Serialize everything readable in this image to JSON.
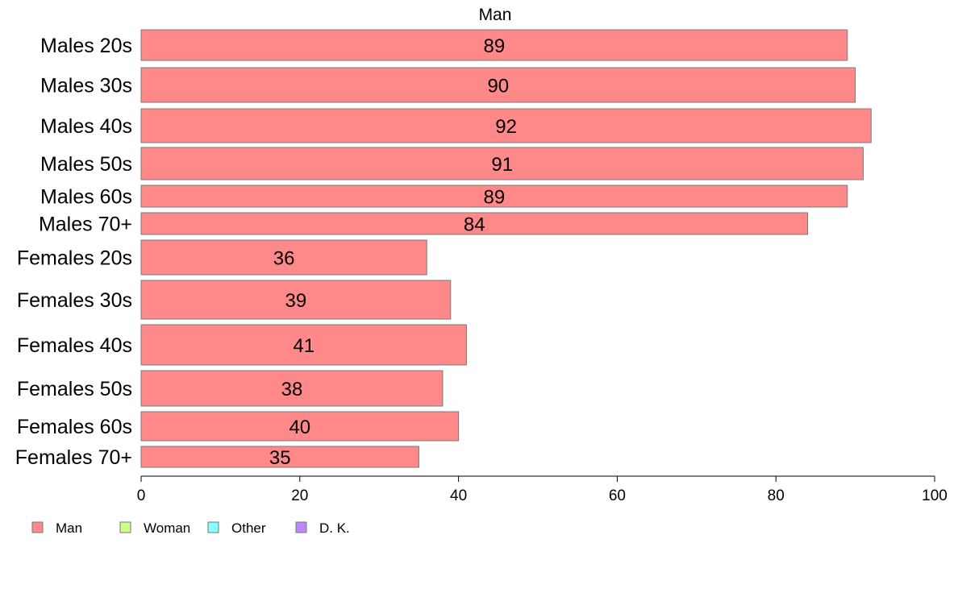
{
  "chart_data": {
    "type": "bar",
    "orientation": "horizontal",
    "title": "Man",
    "categories": [
      "Males 20s",
      "Males 30s",
      "Males 40s",
      "Males 50s",
      "Males 60s",
      "Males 70+",
      "Females 20s",
      "Females 30s",
      "Females 40s",
      "Females 50s",
      "Females 60s",
      "Females 70+"
    ],
    "series": [
      {
        "name": "Man",
        "values": [
          89,
          90,
          92,
          91,
          89,
          84,
          36,
          39,
          41,
          38,
          40,
          35
        ]
      }
    ],
    "data_labels": [
      "89",
      "90",
      "92",
      "91",
      "89",
      "84",
      "36",
      "39",
      "41",
      "38",
      "40",
      "35"
    ],
    "xlim": [
      0,
      100
    ],
    "xticks": [
      0,
      20,
      40,
      60,
      80,
      100
    ],
    "xtick_labels": [
      "0",
      "20",
      "40",
      "60",
      "80",
      "100"
    ],
    "grid": false,
    "legend": {
      "placement": "bottom-left",
      "entries": [
        {
          "label": "Man",
          "color": "#ff8888"
        },
        {
          "label": "Woman",
          "color": "#ccff88"
        },
        {
          "label": "Other",
          "color": "#88ffff"
        },
        {
          "label": "D. K.",
          "color": "#bb88ff"
        }
      ]
    },
    "colors": {
      "bar": "#ff8888",
      "bar_border": "#7a7a7a",
      "axis": "#000000"
    }
  }
}
